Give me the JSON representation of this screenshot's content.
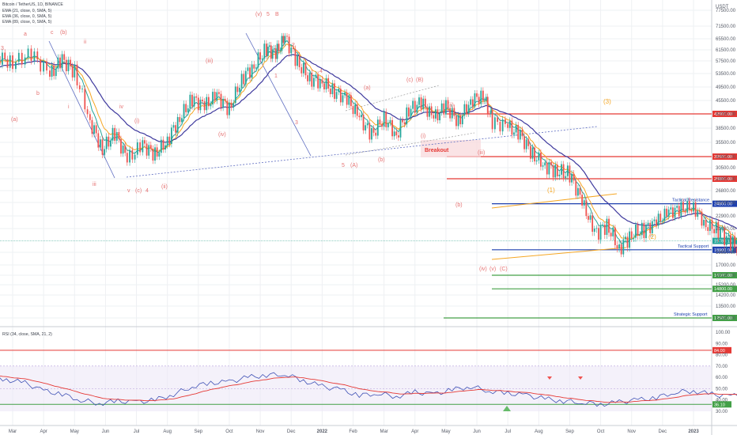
{
  "chart_data": {
    "type": "line",
    "pair": "Bitcoin / TetherUS, 1D, BINANCE",
    "indicators": [
      "EMA (21, close, 0, SMA, 5)",
      "EMA (36, close, 0, SMA, 5)",
      "EMA (89, close, 0, SMA, 5)"
    ],
    "rsi_label": "RSI (34, close, SMA, 21, 2)",
    "currency": "USDT",
    "x_ticks": [
      "Mar",
      "Apr",
      "May",
      "Jun",
      "Jul",
      "Aug",
      "Sep",
      "Oct",
      "Nov",
      "Dec",
      "2022",
      "Feb",
      "Mar",
      "Apr",
      "May",
      "Jun",
      "Jul",
      "Aug",
      "Sep",
      "Oct",
      "Nov",
      "Dec",
      "2023"
    ],
    "y_ticks": [
      77500,
      71500,
      65500,
      61500,
      57500,
      53500,
      49500,
      45500,
      42000,
      38500,
      35500,
      32600,
      30500,
      28800,
      26800,
      25000,
      22900,
      21000,
      18650,
      17000,
      16100,
      15200,
      14200,
      13500,
      12500
    ],
    "rsi_ticks": [
      100,
      90,
      80,
      70,
      60,
      50,
      40,
      30
    ],
    "levels": [
      {
        "value": 42000,
        "color": "#e53935",
        "label": "42000.00"
      },
      {
        "value": 32600,
        "color": "#e53935",
        "label": "32600.00"
      },
      {
        "value": 28800,
        "color": "#e53935",
        "label": "28800.00"
      },
      {
        "value": 24800,
        "color": "#1e40af",
        "label": "24800.00",
        "name": "Tactical Resistance"
      },
      {
        "value": 18900,
        "color": "#1e40af",
        "label": "18900.00",
        "name": "Tactical Support"
      },
      {
        "value": 16100,
        "color": "#43a047",
        "label": "16100.00"
      },
      {
        "value": 14800,
        "color": "#43a047",
        "label": "14800.00"
      },
      {
        "value": 12500,
        "color": "#43a047",
        "label": "12500.00",
        "name": "Strategic Support"
      }
    ],
    "current_price": {
      "value": 19780.19,
      "label": "19780.19"
    },
    "rsi_levels": [
      {
        "value": 84,
        "label": "84.00",
        "color": "#e53935"
      },
      {
        "value": 36.1,
        "label": "36.10",
        "color": "#43a047"
      }
    ],
    "breakout_label": "Breakout",
    "price_series": [
      [
        0.0,
        52000
      ],
      [
        0.5,
        58000
      ],
      [
        1.0,
        55000
      ],
      [
        1.5,
        59000
      ],
      [
        2.0,
        57000
      ],
      [
        2.6,
        60000
      ],
      [
        3.2,
        53000
      ],
      [
        3.6,
        58000
      ],
      [
        4.0,
        54000
      ],
      [
        4.5,
        40000
      ],
      [
        4.9,
        34000
      ],
      [
        5.3,
        37500
      ],
      [
        5.7,
        32000
      ],
      [
        6.2,
        35000
      ],
      [
        6.6,
        33000
      ],
      [
        7.0,
        36000
      ],
      [
        7.4,
        41000
      ],
      [
        7.8,
        46000
      ],
      [
        8.2,
        44000
      ],
      [
        8.6,
        47000
      ],
      [
        9.0,
        43000
      ],
      [
        9.4,
        52000
      ],
      [
        9.8,
        56000
      ],
      [
        10.2,
        62000
      ],
      [
        10.5,
        60000
      ],
      [
        10.8,
        66000
      ],
      [
        11.2,
        57000
      ],
      [
        11.6,
        52000
      ],
      [
        12.0,
        51000
      ],
      [
        12.4,
        48000
      ],
      [
        12.8,
        46000
      ],
      [
        13.2,
        41000
      ],
      [
        13.6,
        37000
      ],
      [
        14.0,
        41000
      ],
      [
        14.4,
        37000
      ],
      [
        14.8,
        43000
      ],
      [
        15.2,
        45000
      ],
      [
        15.6,
        41000
      ],
      [
        16.0,
        44000
      ],
      [
        16.4,
        40000
      ],
      [
        16.8,
        45500
      ],
      [
        17.2,
        47000
      ],
      [
        17.5,
        40000
      ],
      [
        18.0,
        39000
      ],
      [
        18.4,
        37000
      ],
      [
        18.8,
        33000
      ],
      [
        19.2,
        31000
      ],
      [
        19.6,
        30000
      ],
      [
        20.0,
        29500
      ],
      [
        20.4,
        25000
      ],
      [
        20.8,
        20500
      ],
      [
        21.2,
        21500
      ],
      [
        21.6,
        19000
      ],
      [
        22.0,
        20500
      ],
      [
        22.4,
        21000
      ],
      [
        22.8,
        22000
      ],
      [
        23.2,
        23500
      ],
      [
        23.6,
        24000
      ],
      [
        24.0,
        24300
      ],
      [
        24.4,
        21500
      ],
      [
        24.8,
        21000
      ],
      [
        25.2,
        19500
      ],
      [
        25.6,
        18900
      ],
      [
        25.8,
        21500
      ],
      [
        26.0,
        22000
      ],
      [
        26.3,
        19780
      ]
    ],
    "rsi_series": [
      [
        0.0,
        64
      ],
      [
        0.6,
        60
      ],
      [
        1.2,
        62
      ],
      [
        1.8,
        58
      ],
      [
        2.4,
        55
      ],
      [
        3.0,
        48
      ],
      [
        3.6,
        45
      ],
      [
        4.2,
        40
      ],
      [
        4.8,
        37
      ],
      [
        5.4,
        39
      ],
      [
        6.0,
        38
      ],
      [
        6.6,
        40
      ],
      [
        7.2,
        45
      ],
      [
        7.8,
        52
      ],
      [
        8.4,
        55
      ],
      [
        9.0,
        56
      ],
      [
        9.6,
        60
      ],
      [
        10.2,
        62
      ],
      [
        10.8,
        63
      ],
      [
        11.4,
        57
      ],
      [
        12.0,
        52
      ],
      [
        12.6,
        49
      ],
      [
        13.2,
        44
      ],
      [
        13.8,
        46
      ],
      [
        14.4,
        43
      ],
      [
        15.0,
        47
      ],
      [
        15.6,
        45
      ],
      [
        16.2,
        49
      ],
      [
        16.8,
        52
      ],
      [
        17.4,
        48
      ],
      [
        18.0,
        46
      ],
      [
        18.6,
        44
      ],
      [
        19.2,
        41
      ],
      [
        19.8,
        39
      ],
      [
        20.4,
        38
      ],
      [
        21.0,
        36
      ],
      [
        21.6,
        38
      ],
      [
        22.2,
        40
      ],
      [
        22.8,
        42
      ],
      [
        23.4,
        47
      ],
      [
        24.0,
        48
      ],
      [
        24.6,
        45
      ],
      [
        25.2,
        43
      ],
      [
        25.8,
        48
      ],
      [
        26.3,
        44
      ]
    ],
    "wave_labels_red": [
      "3",
      "a",
      "c",
      "(b)",
      "ii",
      "i",
      "b",
      "(a)",
      "iii",
      "v",
      "(c)",
      "4",
      "iv",
      "(ii)",
      "(iii)",
      "(i)",
      "(iv)",
      "(v)",
      "5",
      "B",
      "2",
      "1",
      "3",
      "4",
      "(a)",
      "(c)",
      "(B)",
      "(b)",
      "(ii)",
      "(i)",
      "5",
      "(A)",
      "(b)",
      "(iii)",
      "(iv)",
      "(v)",
      "(C)",
      "IV"
    ],
    "wave_labels_orange": [
      "(3)",
      "(1)",
      "(2)"
    ]
  }
}
